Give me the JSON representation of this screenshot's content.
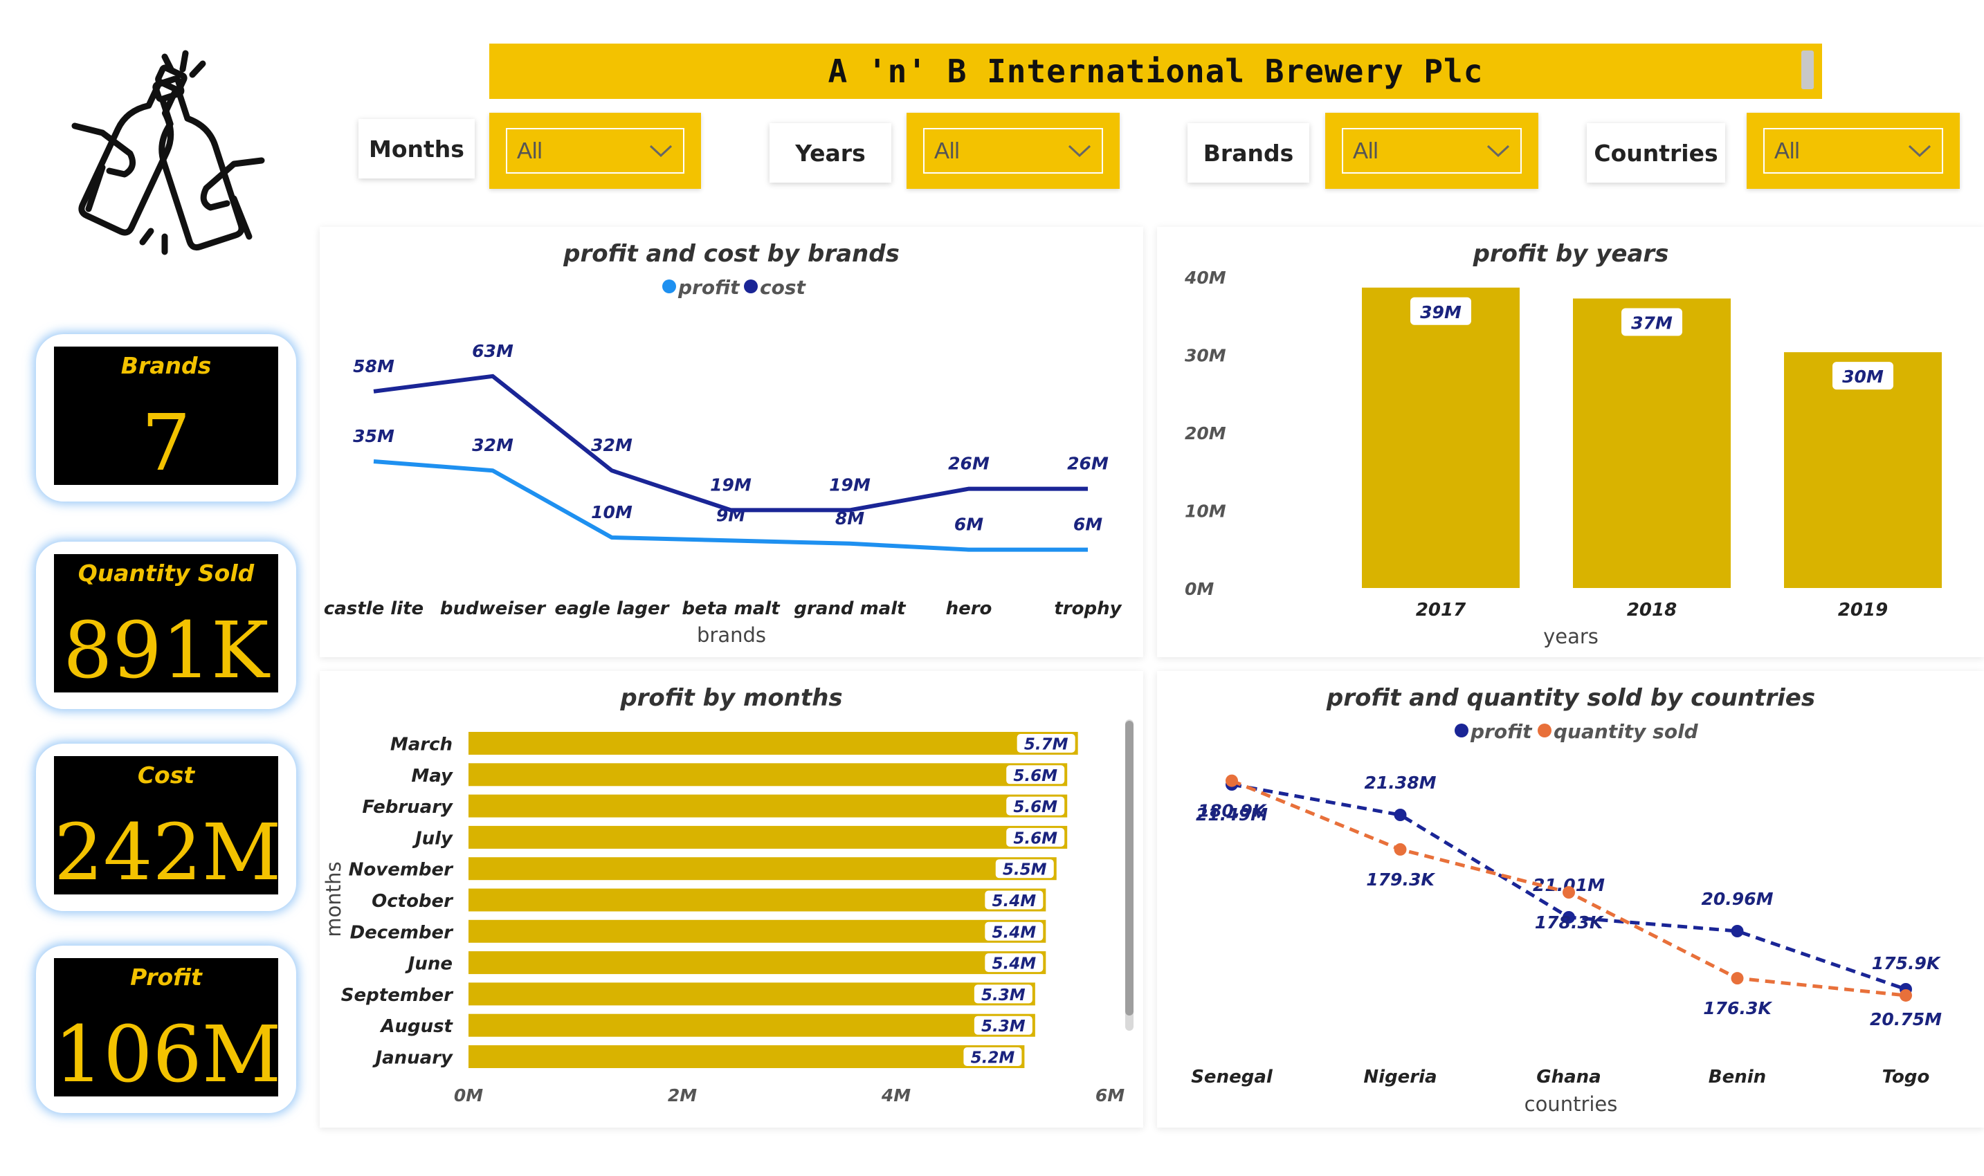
{
  "header": {
    "title": "A 'n' B International Brewery Plc"
  },
  "logo": {
    "icon": "beer-toast-icon"
  },
  "filters": [
    {
      "label": "Months",
      "value": "All"
    },
    {
      "label": "Years",
      "value": "All"
    },
    {
      "label": "Brands",
      "value": "All"
    },
    {
      "label": "Countries",
      "value": "All"
    }
  ],
  "kpis": [
    {
      "label": "Brands",
      "value": "7"
    },
    {
      "label": "Quantity Sold",
      "value": "891K"
    },
    {
      "label": "Cost",
      "value": "242M"
    },
    {
      "label": "Profit",
      "value": "106M"
    }
  ],
  "colors": {
    "accent": "#f3c200",
    "bar": "#d9b300",
    "profit_line": "#1e90f0",
    "cost_line": "#1a2596",
    "country_profit": "#1a2596",
    "country_qty": "#e8703a"
  },
  "chart_data": [
    {
      "id": "brands",
      "type": "line",
      "title": "profit and cost by brands",
      "xlabel": "brands",
      "ylabel": "",
      "categories": [
        "castle lite",
        "budweiser",
        "eagle lager",
        "beta malt",
        "grand malt",
        "hero",
        "trophy"
      ],
      "series": [
        {
          "name": "profit",
          "values": [
            35,
            32,
            10,
            9,
            8,
            6,
            6
          ],
          "labels": [
            "35M",
            "32M",
            "10M",
            "9M",
            "8M",
            "6M",
            "6M"
          ]
        },
        {
          "name": "cost",
          "values": [
            58,
            63,
            32,
            19,
            19,
            26,
            26
          ],
          "labels": [
            "58M",
            "63M",
            "32M",
            "19M",
            "19M",
            "26M",
            "26M"
          ]
        }
      ],
      "legend": "top-center"
    },
    {
      "id": "years",
      "type": "bar",
      "title": "profit by years",
      "xlabel": "years",
      "ylabel": "",
      "categories": [
        "2017",
        "2018",
        "2019"
      ],
      "values": [
        38.6,
        37.2,
        30.3
      ],
      "labels": [
        "39M",
        "37M",
        "30M"
      ],
      "ylim": [
        0,
        40
      ],
      "yticks": [
        "0M",
        "10M",
        "20M",
        "30M",
        "40M"
      ]
    },
    {
      "id": "months",
      "type": "bar",
      "orientation": "horizontal",
      "title": "profit by months",
      "xlabel": "",
      "ylabel": "months",
      "categories": [
        "March",
        "May",
        "February",
        "July",
        "November",
        "October",
        "December",
        "June",
        "September",
        "August",
        "January"
      ],
      "values": [
        5.7,
        5.6,
        5.6,
        5.6,
        5.5,
        5.4,
        5.4,
        5.4,
        5.3,
        5.3,
        5.2
      ],
      "labels": [
        "5.7M",
        "5.6M",
        "5.6M",
        "5.6M",
        "5.5M",
        "5.4M",
        "5.4M",
        "5.4M",
        "5.3M",
        "5.3M",
        "5.2M"
      ],
      "xlim": [
        0,
        6
      ],
      "xticks": [
        "0M",
        "2M",
        "4M",
        "6M"
      ]
    },
    {
      "id": "countries",
      "type": "line",
      "title": "profit and quantity sold by countries",
      "xlabel": "countries",
      "ylabel": "",
      "categories": [
        "Senegal",
        "Nigeria",
        "Ghana",
        "Benin",
        "Togo"
      ],
      "series": [
        {
          "name": "profit",
          "values": [
            21.49,
            21.38,
            21.01,
            20.96,
            20.75
          ],
          "labels": [
            "21.49M",
            "21.38M",
            "21.01M",
            "20.96M",
            "20.75M"
          ]
        },
        {
          "name": "quantity sold",
          "values": [
            180.9,
            179.3,
            178.3,
            176.3,
            175.9
          ],
          "labels": [
            "180.9K",
            "179.3K",
            "178.3K",
            "176.3K",
            "175.9K"
          ]
        }
      ],
      "legend": "top-center"
    }
  ]
}
